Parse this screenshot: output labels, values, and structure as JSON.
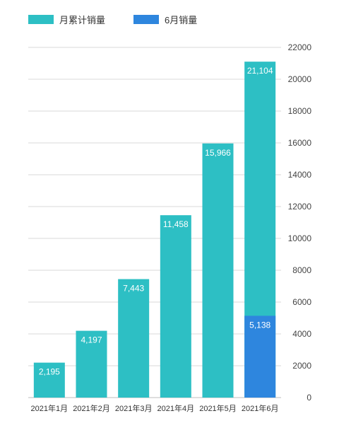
{
  "chart_data": {
    "type": "bar",
    "categories": [
      "2021年1月",
      "2021年2月",
      "2021年3月",
      "2021年4月",
      "2021年5月",
      "2021年6月"
    ],
    "series": [
      {
        "name": "月累计销量",
        "values": [
          2195,
          4197,
          7443,
          11458,
          15966,
          21104
        ],
        "labels": [
          "2,195",
          "4,197",
          "7,443",
          "11,458",
          "15,966",
          "21,104"
        ],
        "color": "#2dbfc4"
      },
      {
        "name": "6月销量",
        "values": [
          null,
          null,
          null,
          null,
          null,
          5138
        ],
        "labels": [
          null,
          null,
          null,
          null,
          null,
          "5,138"
        ],
        "color": "#2e86de"
      }
    ],
    "ylim": [
      0,
      22000
    ],
    "yticks": [
      0,
      2000,
      4000,
      6000,
      8000,
      10000,
      12000,
      14000,
      16000,
      18000,
      20000,
      22000
    ],
    "y_axis_side": "right",
    "grid": true,
    "legend_position": "top-left"
  }
}
